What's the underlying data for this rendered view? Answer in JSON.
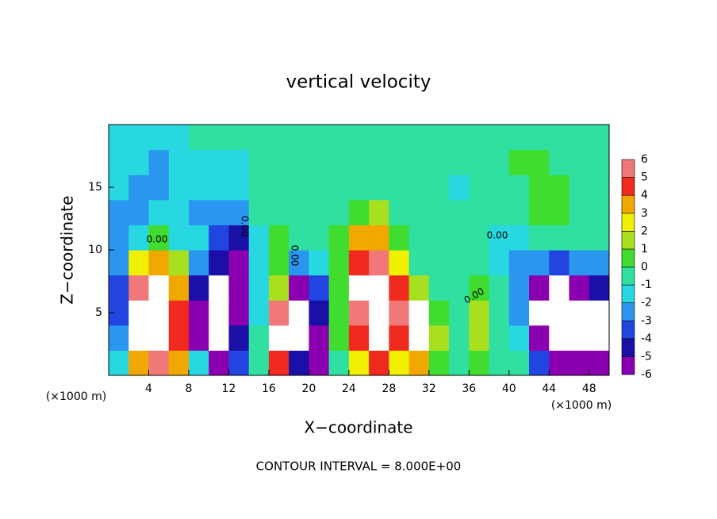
{
  "chart_data": {
    "type": "contour",
    "title": "vertical velocity",
    "x_label": "X−coordinate",
    "y_label": "Z−coordinate",
    "x_unit": "(×1000 m)",
    "y_unit": "(×1000 m)",
    "footnote": "CONTOUR INTERVAL = 8.000E+00",
    "contour_labels": [
      "0.00",
      "0.00",
      "0.00",
      "0.00",
      "0.00"
    ],
    "xlim": [
      0,
      50
    ],
    "ylim": [
      0,
      20
    ],
    "xticks": [
      4,
      8,
      12,
      16,
      20,
      24,
      28,
      32,
      36,
      40,
      44,
      48
    ],
    "yticks": [
      5,
      10,
      15
    ],
    "x": [
      1,
      3,
      5,
      7,
      9,
      11,
      13,
      15,
      17,
      19,
      21,
      23,
      25,
      27,
      29,
      31,
      33,
      35,
      37,
      39,
      41,
      43,
      45,
      47,
      49
    ],
    "y": [
      1,
      3,
      5,
      7,
      9,
      11,
      13,
      15,
      17,
      19
    ],
    "values": [
      [
        -1,
        4,
        6,
        4,
        -1,
        -5,
        -3,
        0,
        5,
        -4,
        -6,
        0,
        3,
        5,
        3,
        4,
        1,
        0,
        1,
        0,
        0,
        -3,
        -6,
        -6,
        -5
      ],
      [
        -2,
        9,
        12,
        5,
        -5,
        -9,
        -4,
        0,
        8,
        -9,
        -5,
        1,
        5,
        10,
        5,
        9,
        2,
        0,
        2,
        0,
        -1,
        -5,
        -9,
        -8,
        -9
      ],
      [
        -3,
        8,
        12,
        5,
        -6,
        -10,
        -5,
        -1,
        6,
        -9,
        -4,
        1,
        6,
        12,
        6,
        7,
        1,
        0,
        2,
        0,
        -2,
        -7,
        -10,
        -7,
        -9
      ],
      [
        -3,
        6,
        9,
        4,
        -4,
        -7,
        -6,
        -1,
        2,
        -5,
        -3,
        1,
        8,
        10,
        5,
        2,
        0,
        0,
        1,
        0,
        -2,
        -5,
        -7,
        -5,
        -4
      ],
      [
        -2,
        3,
        4,
        2,
        -2,
        -4,
        -5,
        -1,
        1,
        -2,
        -1,
        1,
        5,
        6,
        3,
        0,
        0,
        0,
        0,
        -1,
        -2,
        -2,
        -3,
        -2,
        -2
      ],
      [
        -2,
        -1,
        1,
        -1,
        -1,
        -3,
        -4,
        -1,
        1,
        0,
        0,
        1,
        4,
        4,
        1,
        0,
        0,
        0,
        0,
        -1,
        -1,
        0,
        0,
        0,
        0
      ],
      [
        -2,
        -2,
        -1,
        -1,
        -2,
        -2,
        -2,
        0,
        0,
        0,
        0,
        0,
        1,
        2,
        0,
        0,
        0,
        0,
        0,
        0,
        0,
        1,
        1,
        0,
        0
      ],
      [
        -1,
        -2,
        -2,
        -1,
        -1,
        -1,
        -1,
        0,
        0,
        0,
        0,
        0,
        0,
        0,
        0,
        0,
        0,
        -1,
        0,
        0,
        0,
        1,
        1,
        0,
        0
      ],
      [
        -1,
        -1,
        -2,
        -1,
        -1,
        -1,
        -1,
        0,
        0,
        0,
        0,
        0,
        0,
        0,
        0,
        0,
        0,
        0,
        0,
        0,
        1,
        1,
        0,
        0,
        0
      ],
      [
        -1,
        -1,
        -1,
        -1,
        0,
        0,
        0,
        0,
        0,
        0,
        0,
        0,
        0,
        0,
        0,
        0,
        0,
        0,
        0,
        0,
        0,
        0,
        0,
        0,
        0
      ]
    ],
    "colorbar_ticks": [
      -6,
      -5,
      -4,
      -3,
      -2,
      -1,
      0,
      1,
      2,
      3,
      4,
      5,
      6
    ],
    "colors": [
      "#8a00b0",
      "#1a10a8",
      "#2244e0",
      "#2a96f0",
      "#28d8e0",
      "#30e0a0",
      "#40dc30",
      "#a8e020",
      "#f0f000",
      "#f0a800",
      "#f02a1e",
      "#f07878"
    ],
    "out_of_range_color": "#ffffff"
  }
}
